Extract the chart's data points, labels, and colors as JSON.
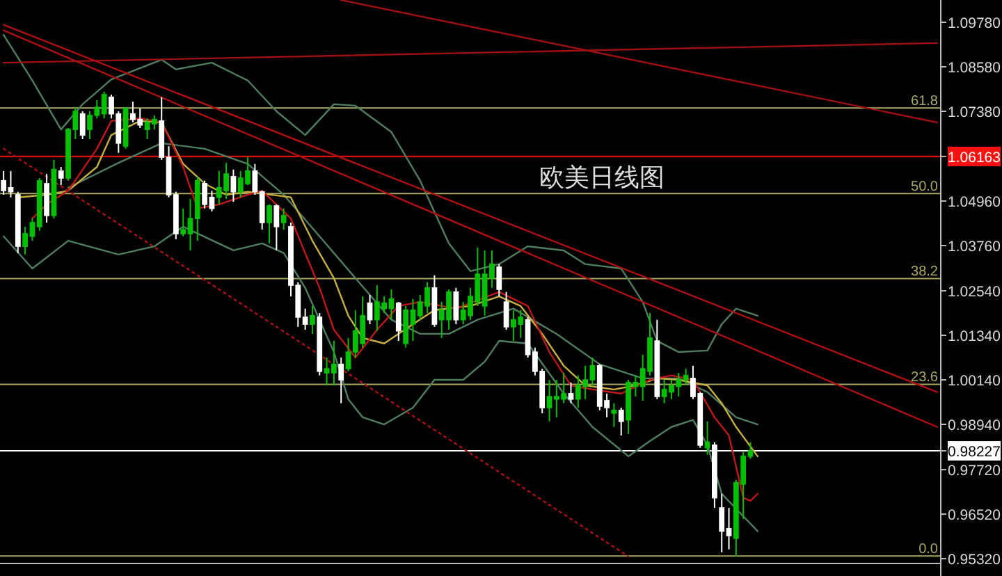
{
  "chart_data": {
    "type": "candlestick",
    "title": "欧美日线图",
    "categories": [
      null,
      null,
      null,
      null,
      null,
      null,
      null,
      null,
      null,
      null,
      null,
      null,
      null,
      null,
      null,
      null,
      null,
      null,
      null,
      null,
      null,
      null,
      null,
      null,
      null,
      null,
      null,
      null,
      null,
      null,
      null,
      null,
      null,
      null,
      null,
      null,
      null,
      null,
      null,
      null,
      null,
      null,
      null,
      null,
      null,
      null,
      null,
      null,
      null,
      null,
      null,
      null,
      null,
      null,
      null,
      null,
      null,
      null,
      null,
      null,
      null,
      null,
      null,
      null,
      null,
      null,
      null,
      null,
      null,
      null,
      null,
      null,
      null,
      null,
      null,
      null,
      null,
      null,
      null,
      null,
      null,
      null,
      null,
      null,
      null,
      null,
      null,
      null,
      null,
      null,
      null,
      null,
      null,
      null,
      null,
      null,
      null,
      null,
      null,
      null,
      null,
      null,
      null,
      null,
      null,
      null,
      null,
      null,
      null,
      null,
      null,
      null,
      null,
      null,
      null,
      null,
      null,
      null,
      null,
      null,
      null,
      null,
      null,
      null,
      null,
      null,
      null,
      null,
      null,
      null,
      null
    ],
    "ohlc": [
      [
        1.0551,
        1.0577,
        1.0513,
        1.0524
      ],
      [
        1.0532,
        1.0577,
        1.0506,
        1.0521
      ],
      [
        1.0513,
        1.0521,
        1.0356,
        1.0374
      ],
      [
        1.0374,
        1.0427,
        1.0352,
        1.0408
      ],
      [
        1.0401,
        1.0449,
        1.0389,
        1.0438
      ],
      [
        1.0427,
        1.0558,
        1.0416,
        1.0551
      ],
      [
        1.0543,
        1.0569,
        1.0438,
        1.0457
      ],
      [
        1.0457,
        1.0607,
        1.0449,
        1.0581
      ],
      [
        1.0577,
        1.0588,
        1.0539,
        1.0558
      ],
      [
        1.0558,
        1.0693,
        1.0551,
        1.0689
      ],
      [
        1.0689,
        1.0749,
        1.0663,
        1.0738
      ],
      [
        1.0731,
        1.0738,
        1.0663,
        1.0674
      ],
      [
        1.0689,
        1.0738,
        1.0663,
        1.0727
      ],
      [
        1.0727,
        1.0768,
        1.0719,
        1.0749
      ],
      [
        1.0731,
        1.0791,
        1.0719,
        1.0783
      ],
      [
        1.0776,
        1.0783,
        1.0719,
        1.0731
      ],
      [
        1.0731,
        1.0738,
        1.0626,
        1.0652
      ],
      [
        1.0644,
        1.0749,
        1.0637,
        1.0746
      ],
      [
        1.0731,
        1.0764,
        1.0708,
        1.0716
      ],
      [
        1.0716,
        1.0746,
        1.0693,
        1.0701
      ],
      [
        1.0689,
        1.0719,
        1.0663,
        1.0708
      ],
      [
        1.0704,
        1.0727,
        1.0689,
        1.0716
      ],
      [
        1.0712,
        1.0776,
        1.0607,
        1.0614
      ],
      [
        1.0614,
        1.0644,
        1.0506,
        1.0513
      ],
      [
        1.0513,
        1.0521,
        1.0393,
        1.0408
      ],
      [
        1.0408,
        1.0476,
        1.0401,
        1.0419
      ],
      [
        1.0408,
        1.0502,
        1.0363,
        1.0449
      ],
      [
        1.0449,
        1.0562,
        1.0389,
        1.0551
      ],
      [
        1.0543,
        1.0551,
        1.0476,
        1.0487
      ],
      [
        1.0506,
        1.0524,
        1.0468,
        1.0476
      ],
      [
        1.0506,
        1.0577,
        1.0487,
        1.0532
      ],
      [
        1.0524,
        1.0599,
        1.0502,
        1.0569
      ],
      [
        1.0562,
        1.0581,
        1.0494,
        1.0521
      ],
      [
        1.0521,
        1.0577,
        1.0506,
        1.0558
      ],
      [
        1.0543,
        1.0614,
        1.0539,
        1.0577
      ],
      [
        1.0577,
        1.0596,
        1.0513,
        1.0521
      ],
      [
        1.0521,
        1.0524,
        1.0419,
        1.0438
      ],
      [
        1.0438,
        1.0487,
        1.0382,
        1.0483
      ],
      [
        1.0483,
        1.0487,
        1.0363,
        1.0427
      ],
      [
        1.0438,
        1.0476,
        1.0419,
        1.0457
      ],
      [
        1.0427,
        1.0438,
        1.0239,
        1.0269
      ],
      [
        1.0269,
        1.0277,
        1.0157,
        1.0183
      ],
      [
        1.0183,
        1.0206,
        1.0149,
        1.0164
      ],
      [
        1.0164,
        1.0213,
        1.0138,
        1.0187
      ],
      [
        1.0183,
        1.0194,
        1.0026,
        1.0037
      ],
      [
        1.0033,
        1.0074,
        0.9999,
        1.0044
      ],
      [
        1.0033,
        1.0119,
        0.9999,
        1.0056
      ],
      [
        1.0056,
        1.0074,
        0.9951,
        1.0014
      ],
      [
        1.0044,
        1.0127,
        1.0037,
        1.0089
      ],
      [
        1.0089,
        1.0202,
        1.0074,
        1.0146
      ],
      [
        1.0112,
        1.0239,
        1.0101,
        1.0187
      ],
      [
        1.0221,
        1.0243,
        1.0164,
        1.0176
      ],
      [
        1.0176,
        1.0269,
        1.0146,
        1.0224
      ],
      [
        1.0206,
        1.0239,
        1.0194,
        1.0221
      ],
      [
        1.0206,
        1.0258,
        1.0176,
        1.0232
      ],
      [
        1.0221,
        1.0224,
        1.0119,
        1.0146
      ],
      [
        1.0112,
        1.0213,
        1.0101,
        1.0202
      ],
      [
        1.0164,
        1.0232,
        1.0119,
        1.0202
      ],
      [
        1.0187,
        1.0243,
        1.0176,
        1.0224
      ],
      [
        1.0213,
        1.0277,
        1.0194,
        1.0262
      ],
      [
        1.0262,
        1.0296,
        1.0157,
        1.0164
      ],
      [
        1.0176,
        1.0224,
        1.0127,
        1.0202
      ],
      [
        1.0176,
        1.0258,
        1.0149,
        1.0251
      ],
      [
        1.0251,
        1.0262,
        1.0164,
        1.0176
      ],
      [
        1.0176,
        1.0224,
        1.0164,
        1.0202
      ],
      [
        1.0187,
        1.0262,
        1.0176,
        1.0239
      ],
      [
        1.0224,
        1.0371,
        1.0213,
        1.0299
      ],
      [
        1.0213,
        1.0363,
        1.0187,
        1.0299
      ],
      [
        1.0288,
        1.0363,
        1.0262,
        1.0326
      ],
      [
        1.0318,
        1.0326,
        1.0239,
        1.0258
      ],
      [
        1.0224,
        1.0251,
        1.0149,
        1.0157
      ],
      [
        1.0157,
        1.0202,
        1.0119,
        1.0176
      ],
      [
        1.0164,
        1.0202,
        1.0127,
        1.0183
      ],
      [
        1.0176,
        1.0183,
        1.0074,
        1.0082
      ],
      [
        1.0089,
        1.0101,
        1.0026,
        1.0037
      ],
      [
        1.0037,
        1.0044,
        0.9924,
        0.9939
      ],
      [
        0.9939,
        1.0014,
        0.9902,
        0.9969
      ],
      [
        0.9962,
        1.0014,
        0.9913,
        0.9969
      ],
      [
        0.9962,
        1.0033,
        0.9951,
        0.9977
      ],
      [
        0.9977,
        1.0007,
        0.9951,
        0.9962
      ],
      [
        0.9962,
        1.0026,
        0.9939,
        0.9999
      ],
      [
        0.9996,
        1.0052,
        0.9962,
        1.0014
      ],
      [
        1.0014,
        1.0074,
        0.9996,
        1.0052
      ],
      [
        1.0052,
        1.0056,
        0.9932,
        0.9943
      ],
      [
        0.9958,
        0.9977,
        0.9913,
        0.9939
      ],
      [
        0.9924,
        0.9951,
        0.9887,
        0.9932
      ],
      [
        0.9932,
        0.9939,
        0.9864,
        0.9902
      ],
      [
        0.9906,
        1.0014,
        0.9868,
        1.0007
      ],
      [
        0.9996,
        1.0026,
        0.9969,
        1.0007
      ],
      [
        0.9996,
        1.0082,
        0.9958,
        1.0044
      ],
      [
        1.0037,
        1.0194,
        1.0026,
        1.0127
      ],
      [
        1.0119,
        1.0176,
        0.9962,
        0.9969
      ],
      [
        0.9969,
        1.0014,
        0.9951,
        0.9988
      ],
      [
        0.9981,
        1.0014,
        0.9962,
        0.9999
      ],
      [
        0.9996,
        1.0033,
        0.9969,
        1.0014
      ],
      [
        1.0014,
        1.0044,
        0.9999,
        1.0026
      ],
      [
        1.0018,
        1.0052,
        0.9962,
        0.9969
      ],
      [
        0.9977,
        0.9981,
        0.9831,
        0.9838
      ],
      [
        0.9831,
        0.9902,
        0.9812,
        0.9846
      ],
      [
        0.9838,
        0.9846,
        0.9669,
        0.9696
      ],
      [
        0.9669,
        0.9707,
        0.9549,
        0.9606
      ],
      [
        0.9613,
        0.9669,
        0.9557,
        0.9594
      ],
      [
        0.9587,
        0.9744,
        0.9538,
        0.9737
      ],
      [
        0.9733,
        0.9819,
        0.9639,
        0.9808
      ],
      [
        0.9808,
        0.9846,
        0.9801,
        0.98227
      ],
      null,
      null,
      null,
      null,
      null,
      null,
      null,
      null,
      null,
      null,
      null,
      null,
      null,
      null,
      null,
      null,
      null,
      null,
      null,
      null,
      null,
      null,
      null,
      null,
      null,
      null
    ],
    "colors": [
      "#ffffff",
      "#ffffff",
      "#ffffff",
      "#00c000",
      "#00c000",
      "#00c000",
      "#ffffff",
      "#00c000",
      "#ffffff",
      "#00c000",
      "#00c000",
      "#ffffff",
      "#00c000",
      "#00c000",
      "#00c000",
      "#ffffff",
      "#ffffff",
      "#00c000",
      "#ffffff",
      "#ffffff",
      "#00c000",
      "#00c000",
      "#ffffff",
      "#ffffff",
      "#ffffff",
      "#00c000",
      "#00c000",
      "#00c000",
      "#ffffff",
      "#ffffff",
      "#00c000",
      "#00c000",
      "#ffffff",
      "#00c000",
      "#00c000",
      "#ffffff",
      "#ffffff",
      "#00c000",
      "#ffffff",
      "#00c000",
      "#ffffff",
      "#ffffff",
      "#ffffff",
      "#00c000",
      "#ffffff",
      "#00c000",
      "#00c000",
      "#ffffff",
      "#00c000",
      "#00c000",
      "#00c000",
      "#ffffff",
      "#00c000",
      "#00c000",
      "#00c000",
      "#ffffff",
      "#00c000",
      "#00c000",
      "#00c000",
      "#00c000",
      "#ffffff",
      "#00c000",
      "#00c000",
      "#ffffff",
      "#00c000",
      "#00c000",
      "#00c000",
      "#00c000",
      "#00c000",
      "#ffffff",
      "#ffffff",
      "#00c000",
      "#00c000",
      "#ffffff",
      "#ffffff",
      "#ffffff",
      "#00c000",
      "#00c000",
      "#00c000",
      "#ffffff",
      "#00c000",
      "#00c000",
      "#00c000",
      "#ffffff",
      "#ffffff",
      "#00c000",
      "#ffffff",
      "#00c000",
      "#00c000",
      "#00c000",
      "#00c000",
      "#ffffff",
      "#00c000",
      "#00c000",
      "#00c000",
      "#00c000",
      "#ffffff",
      "#ffffff",
      "#00c000",
      "#ffffff",
      "#ffffff",
      "#ffffff",
      "#00c000",
      "#00c000",
      "#00c000",
      null,
      null,
      null,
      null,
      null,
      null,
      null,
      null,
      null,
      null,
      null,
      null,
      null,
      null,
      null,
      null,
      null,
      null,
      null,
      null,
      null,
      null,
      null,
      null,
      null,
      null
    ],
    "series": [
      {
        "type": "line",
        "color": "#4f7f5f",
        "values": [
          1.0944,
          null,
          null,
          null,
          1.0821,
          null,
          null,
          null,
          1.0689,
          null,
          null,
          1.0757,
          null,
          null,
          null,
          1.0824,
          null,
          null,
          null,
          null,
          null,
          null,
          1.0877,
          null,
          1.0851,
          null,
          null,
          null,
          null,
          1.0869,
          null,
          null,
          null,
          null,
          1.0821,
          null,
          null,
          null,
          1.0738,
          null,
          null,
          null,
          1.0674,
          null,
          null,
          null,
          1.0757,
          null,
          null,
          1.0753,
          null,
          null,
          null,
          null,
          1.0682,
          null,
          null,
          null,
          1.0551,
          null,
          null,
          null,
          1.0382,
          null,
          null,
          1.0307,
          null,
          null,
          null,
          1.0326,
          null,
          null,
          null,
          1.0374,
          null,
          null,
          null,
          null,
          1.0363,
          null,
          null,
          1.0326,
          null,
          null,
          null,
          null,
          1.0314,
          null,
          null,
          1.0224,
          null,
          1.0119,
          null,
          null,
          1.0089,
          null,
          null,
          null,
          1.0093,
          null,
          1.0164,
          null,
          1.0206,
          null,
          null,
          1.0187,
          null,
          null,
          null,
          null,
          null,
          null,
          null,
          null,
          null,
          null,
          null,
          null,
          null,
          null,
          null,
          null,
          null,
          null,
          null,
          null,
          null,
          null,
          null,
          null,
          null
        ]
      },
      {
        "type": "line",
        "color": "#4f7f5f",
        "values": [
          null,
          null,
          null,
          null,
          null,
          null,
          null,
          null,
          null,
          1.0532,
          null,
          null,
          null,
          null,
          null,
          null,
          1.0599,
          null,
          null,
          null,
          null,
          null,
          1.0652,
          null,
          null,
          null,
          null,
          null,
          1.0637,
          null,
          null,
          null,
          null,
          null,
          1.0596,
          null,
          null,
          null,
          null,
          1.0513,
          null,
          null,
          null,
          null,
          1.0401,
          null,
          null,
          null,
          null,
          1.0288,
          null,
          null,
          null,
          null,
          1.0176,
          null,
          null,
          null,
          1.0138,
          null,
          null,
          null,
          1.0138,
          null,
          null,
          null,
          1.0176,
          null,
          null,
          null,
          null,
          1.0206,
          null,
          null,
          null,
          null,
          null,
          1.0138,
          null,
          null,
          null,
          null,
          null,
          1.0056,
          null,
          null,
          null,
          null,
          null,
          1.0018,
          null,
          null,
          null,
          null,
          1.0018,
          null,
          null,
          null,
          0.9981,
          null,
          null,
          null,
          0.9913,
          null,
          null,
          0.9894,
          null,
          null,
          null,
          null,
          null,
          null,
          null,
          null,
          null,
          null,
          null,
          null,
          null,
          null,
          null,
          null,
          null,
          null,
          null,
          null,
          null,
          null,
          null,
          null,
          null
        ]
      },
      {
        "type": "line",
        "color": "#4f7f5f",
        "values": [
          1.0401,
          null,
          null,
          null,
          1.0314,
          null,
          null,
          null,
          null,
          1.0389,
          null,
          null,
          null,
          null,
          null,
          null,
          1.0352,
          null,
          null,
          null,
          null,
          1.0374,
          null,
          null,
          null,
          1.0427,
          null,
          null,
          null,
          null,
          null,
          null,
          1.0363,
          null,
          null,
          null,
          1.0382,
          null,
          null,
          1.0356,
          null,
          null,
          1.0262,
          null,
          null,
          null,
          1.0089,
          null,
          0.9962,
          null,
          0.9913,
          null,
          null,
          0.9894,
          null,
          null,
          null,
          0.9939,
          null,
          null,
          1.0014,
          null,
          null,
          null,
          1.0014,
          null,
          null,
          1.0063,
          null,
          1.0119,
          null,
          null,
          null,
          1.0112,
          null,
          null,
          null,
          null,
          0.9977,
          null,
          null,
          null,
          0.9887,
          null,
          null,
          null,
          null,
          0.9808,
          null,
          null,
          0.9849,
          null,
          null,
          0.9887,
          null,
          null,
          0.9906,
          null,
          0.9838,
          null,
          0.9707,
          null,
          null,
          null,
          null,
          0.9606,
          null,
          null,
          null,
          null,
          null,
          null,
          null,
          null,
          null,
          null,
          null,
          null,
          null,
          null,
          null,
          null,
          null,
          null,
          null,
          null,
          null,
          null,
          null,
          null,
          null
        ]
      },
      {
        "type": "line",
        "color": "#c8b040",
        "values": [
          null,
          null,
          1.0506,
          null,
          null,
          null,
          1.0513,
          null,
          null,
          1.0524,
          null,
          null,
          null,
          1.0588,
          null,
          1.0674,
          null,
          null,
          null,
          1.0712,
          null,
          null,
          1.0708,
          null,
          null,
          1.0596,
          null,
          null,
          1.0543,
          null,
          null,
          1.0513,
          null,
          null,
          1.0521,
          null,
          null,
          null,
          null,
          null,
          1.0506,
          null,
          null,
          1.0389,
          null,
          null,
          1.0288,
          null,
          1.0187,
          null,
          1.0127,
          null,
          null,
          1.0112,
          null,
          null,
          null,
          1.0164,
          null,
          null,
          1.0202,
          null,
          null,
          null,
          null,
          1.0213,
          null,
          null,
          null,
          1.0239,
          null,
          null,
          1.0213,
          null,
          null,
          1.0138,
          null,
          null,
          1.0052,
          null,
          null,
          0.9999,
          null,
          null,
          null,
          0.9988,
          null,
          null,
          0.9999,
          null,
          null,
          1.0018,
          null,
          null,
          1.0014,
          null,
          null,
          null,
          0.9999,
          null,
          0.9951,
          null,
          0.9887,
          null,
          null,
          0.9808,
          null,
          null,
          null,
          null,
          null,
          null,
          null,
          null,
          null,
          null,
          null,
          null,
          null,
          null,
          null,
          null,
          null,
          null,
          null,
          null,
          null,
          null,
          null,
          null,
          null
        ]
      },
      {
        "type": "line",
        "color": "#c01818",
        "values": [
          null,
          null,
          null,
          null,
          1.0449,
          null,
          1.0487,
          null,
          null,
          1.0524,
          null,
          null,
          null,
          1.0637,
          null,
          1.0712,
          null,
          null,
          null,
          1.0719,
          null,
          null,
          1.0708,
          null,
          null,
          1.0588,
          null,
          1.0476,
          null,
          null,
          1.0487,
          null,
          null,
          null,
          1.0513,
          null,
          1.0524,
          null,
          null,
          null,
          1.0449,
          null,
          null,
          null,
          1.0262,
          null,
          1.0149,
          null,
          null,
          1.0074,
          null,
          null,
          1.0149,
          null,
          null,
          1.0213,
          null,
          null,
          1.0224,
          null,
          null,
          null,
          null,
          1.0206,
          null,
          null,
          null,
          null,
          null,
          1.0251,
          null,
          null,
          null,
          1.0213,
          null,
          null,
          1.0089,
          null,
          null,
          0.9999,
          null,
          null,
          0.9988,
          null,
          null,
          null,
          0.9977,
          null,
          null,
          null,
          1.0014,
          null,
          null,
          1.0026,
          null,
          null,
          1.0014,
          null,
          null,
          0.9913,
          null,
          0.9864,
          null,
          0.9696,
          0.9688,
          0.9707,
          null,
          null,
          null,
          null,
          null,
          null,
          null,
          null,
          null,
          null,
          null,
          null,
          null,
          null,
          null,
          null,
          null,
          null,
          null,
          null,
          null,
          null,
          null,
          null,
          null
        ]
      },
      {
        "type": "line",
        "color": "#a01010",
        "values": [
          1.0869,
          null,
          null,
          null,
          null,
          null,
          null,
          null,
          null,
          null,
          null,
          null,
          null,
          null,
          null,
          null,
          null,
          null,
          null,
          null,
          null,
          null,
          null,
          null,
          null,
          null,
          null,
          null,
          null,
          null,
          null,
          null,
          null,
          null,
          null,
          null,
          null,
          null,
          null,
          null,
          null,
          null,
          null,
          null,
          null,
          null,
          null,
          null,
          null,
          null,
          null,
          null,
          null,
          null,
          null,
          null,
          null,
          null,
          null,
          null,
          null,
          null,
          null,
          null,
          null,
          null,
          null,
          null,
          null,
          null,
          null,
          null,
          null,
          null,
          null,
          null,
          null,
          null,
          null,
          null,
          null,
          null,
          null,
          null,
          null,
          null,
          null,
          null,
          null,
          null,
          null,
          null,
          null,
          null,
          null,
          null,
          null,
          null,
          null,
          null,
          null,
          null,
          null,
          null,
          null,
          null,
          null,
          null,
          null,
          null,
          null,
          null,
          null,
          null,
          null,
          null,
          null,
          null,
          null,
          null,
          null,
          null,
          null,
          null,
          null,
          null,
          null,
          null,
          null,
          null,
          1.0922
        ]
      },
      {
        "type": "line",
        "color": "#a01010",
        "values": [
          null,
          null,
          null,
          null,
          null,
          null,
          null,
          null,
          null,
          null,
          null,
          null,
          null,
          null,
          null,
          null,
          null,
          null,
          null,
          null,
          null,
          null,
          null,
          null,
          null,
          null,
          null,
          null,
          null,
          null,
          null,
          null,
          null,
          null,
          null,
          null,
          null,
          null,
          null,
          null,
          null,
          null,
          null,
          null,
          null,
          null,
          null,
          1.1038,
          null,
          null,
          null,
          null,
          null,
          null,
          null,
          null,
          null,
          null,
          null,
          null,
          null,
          null,
          null,
          null,
          null,
          null,
          null,
          null,
          null,
          null,
          null,
          null,
          null,
          null,
          null,
          null,
          null,
          null,
          null,
          null,
          null,
          null,
          null,
          null,
          null,
          null,
          null,
          null,
          null,
          null,
          null,
          null,
          null,
          null,
          null,
          null,
          null,
          null,
          null,
          null,
          null,
          null,
          null,
          null,
          null,
          null,
          null,
          null,
          null,
          null,
          null,
          null,
          null,
          null,
          null,
          null,
          null,
          null,
          null,
          null,
          null,
          null,
          null,
          null,
          null,
          null,
          null,
          null,
          null,
          null,
          1.0708
        ]
      },
      {
        "type": "line",
        "color": "#b01010",
        "values": [
          1.0971,
          null,
          null,
          null,
          null,
          null,
          null,
          null,
          null,
          null,
          null,
          null,
          null,
          null,
          null,
          null,
          null,
          null,
          null,
          null,
          null,
          null,
          null,
          null,
          null,
          null,
          null,
          null,
          null,
          null,
          null,
          null,
          null,
          null,
          null,
          null,
          null,
          null,
          null,
          null,
          null,
          null,
          null,
          null,
          null,
          null,
          null,
          null,
          null,
          null,
          null,
          null,
          null,
          null,
          null,
          null,
          null,
          null,
          null,
          null,
          null,
          null,
          null,
          null,
          null,
          null,
          null,
          null,
          null,
          null,
          null,
          null,
          null,
          null,
          null,
          null,
          null,
          null,
          null,
          null,
          null,
          null,
          null,
          null,
          null,
          null,
          null,
          null,
          null,
          null,
          null,
          null,
          null,
          null,
          null,
          null,
          null,
          null,
          null,
          null,
          null,
          null,
          null,
          null,
          null,
          null,
          null,
          null,
          null,
          null,
          null,
          null,
          null,
          null,
          null,
          null,
          null,
          null,
          null,
          null,
          null,
          null,
          null,
          null,
          null,
          null,
          null,
          null,
          null,
          null,
          0.9981
        ]
      },
      {
        "type": "line",
        "color": "#b01010",
        "values": [
          1.0956,
          null,
          null,
          null,
          null,
          null,
          null,
          null,
          null,
          null,
          null,
          null,
          null,
          null,
          null,
          null,
          null,
          null,
          null,
          null,
          null,
          null,
          null,
          null,
          null,
          null,
          null,
          null,
          null,
          null,
          null,
          null,
          null,
          null,
          null,
          null,
          null,
          null,
          null,
          null,
          null,
          null,
          null,
          null,
          null,
          null,
          null,
          null,
          null,
          null,
          null,
          null,
          null,
          null,
          null,
          null,
          null,
          null,
          null,
          null,
          null,
          null,
          null,
          null,
          null,
          null,
          null,
          null,
          null,
          null,
          null,
          null,
          null,
          null,
          null,
          null,
          null,
          null,
          null,
          null,
          null,
          null,
          null,
          null,
          null,
          null,
          null,
          null,
          null,
          null,
          null,
          null,
          null,
          null,
          null,
          null,
          null,
          null,
          null,
          null,
          null,
          null,
          null,
          null,
          null,
          null,
          null,
          null,
          null,
          null,
          null,
          null,
          null,
          null,
          null,
          null,
          null,
          null,
          null,
          null,
          null,
          null,
          null,
          null,
          null,
          null,
          null,
          null,
          null,
          null,
          0.9887
        ]
      },
      {
        "type": "line",
        "color": "#b01010",
        "line_style": "dotted",
        "values": [
          1.0637,
          null,
          null,
          null,
          null,
          null,
          null,
          null,
          null,
          null,
          null,
          null,
          null,
          null,
          null,
          null,
          null,
          null,
          null,
          null,
          null,
          null,
          null,
          null,
          null,
          null,
          null,
          null,
          null,
          null,
          null,
          null,
          null,
          null,
          null,
          null,
          null,
          null,
          null,
          null,
          null,
          null,
          null,
          null,
          null,
          null,
          null,
          null,
          null,
          null,
          null,
          null,
          null,
          null,
          null,
          null,
          null,
          null,
          null,
          null,
          null,
          null,
          null,
          null,
          null,
          null,
          null,
          null,
          null,
          null,
          null,
          null,
          null,
          null,
          null,
          null,
          null,
          null,
          null,
          null,
          null,
          null,
          null,
          null,
          null,
          null,
          null,
          0.9538,
          null,
          null,
          null,
          null,
          null,
          null,
          null,
          null,
          null,
          null,
          null,
          null,
          null,
          null,
          null,
          null,
          null,
          null,
          null,
          null,
          null,
          null,
          null,
          null,
          null,
          null,
          null,
          null,
          null,
          null,
          null,
          null,
          null,
          null,
          null,
          null,
          null,
          null,
          null,
          null,
          null,
          null,
          null
        ]
      }
    ],
    "ref_lines": [
      {
        "axis": "y",
        "value": 1.0747,
        "color": "#a8a860"
      },
      {
        "axis": "y",
        "value": 1.0516,
        "color": "#a8a860"
      },
      {
        "axis": "y",
        "value": 1.0287,
        "color": "#a8a860"
      },
      {
        "axis": "y",
        "value": 1.0002,
        "color": "#a8a860"
      },
      {
        "axis": "y",
        "value": 0.9539,
        "color": "#a8a860"
      },
      {
        "axis": "y",
        "value": 1.06163,
        "color": "#ff1010"
      },
      {
        "axis": "y",
        "value": 0.98227,
        "color": "#ffffff"
      }
    ],
    "annotations": [
      {
        "text": "61.8",
        "y": 1.0747
      },
      {
        "text": "50.0",
        "y": 1.0516
      },
      {
        "text": "38.2",
        "y": 1.0287
      },
      {
        "text": "23.6",
        "y": 1.0002
      },
      {
        "text": "0.0",
        "y": 0.9539
      }
    ],
    "ylim": [
      0.9519,
      1.1038
    ],
    "yticks": [
      {
        "value": 1.0978,
        "label": "1.09780"
      },
      {
        "value": 1.0858,
        "label": "1.08580"
      },
      {
        "value": 1.0738,
        "label": "1.07380"
      },
      {
        "value": 1.06163,
        "label": "1.06163"
      },
      {
        "value": 1.0496,
        "label": "1.04960"
      },
      {
        "value": 1.0376,
        "label": "1.03760"
      },
      {
        "value": 1.0254,
        "label": "1.02540"
      },
      {
        "value": 1.0134,
        "label": "1.01340"
      },
      {
        "value": 1.0014,
        "label": "1.00140"
      },
      {
        "value": 0.9894,
        "label": "0.98940"
      },
      {
        "value": 0.98227,
        "label": "0.98227"
      },
      {
        "value": 0.9772,
        "label": "0.97720"
      },
      {
        "value": 0.9652,
        "label": "0.96520"
      },
      {
        "value": 0.9532,
        "label": "0.95320"
      }
    ],
    "tick_labels": "y",
    "grid": false
  }
}
